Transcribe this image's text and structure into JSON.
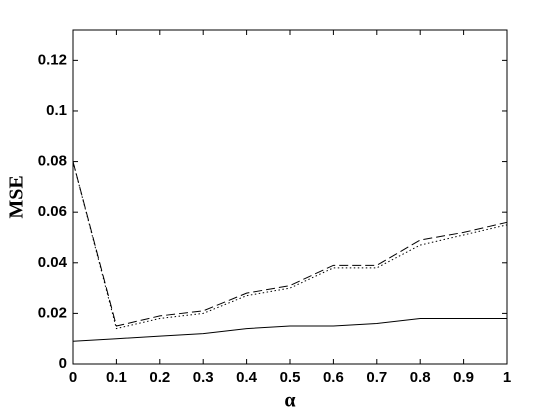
{
  "chart_data": {
    "type": "line",
    "x_label": "α",
    "y_label": "MSE",
    "x": [
      0,
      0.1,
      0.2,
      0.3,
      0.4,
      0.5,
      0.6,
      0.7,
      0.8,
      0.9,
      1
    ],
    "series": [
      {
        "color": "#000000",
        "line_style": "solid",
        "values": [
          0.009,
          0.01,
          0.011,
          0.012,
          0.014,
          0.015,
          0.015,
          0.016,
          0.018,
          0.018,
          0.018
        ]
      },
      {
        "color": "#000000",
        "line_style": "dashed",
        "values": [
          0.08,
          0.015,
          0.019,
          0.021,
          0.028,
          0.031,
          0.039,
          0.039,
          0.049,
          0.052,
          0.056
        ]
      },
      {
        "color": "#000000",
        "line_style": "dotted",
        "values": [
          0.08,
          0.014,
          0.018,
          0.02,
          0.027,
          0.03,
          0.038,
          0.038,
          0.047,
          0.051,
          0.055
        ]
      }
    ],
    "xlim": [
      0,
      1
    ],
    "xticks": [
      0,
      0.1,
      0.2,
      0.3,
      0.4,
      0.5,
      0.6,
      0.7,
      0.8,
      0.9,
      1
    ],
    "ylim": [
      0,
      0.132
    ],
    "yticks": [
      0,
      0.02,
      0.04,
      0.06,
      0.08,
      0.1,
      0.12
    ],
    "grid": false
  }
}
